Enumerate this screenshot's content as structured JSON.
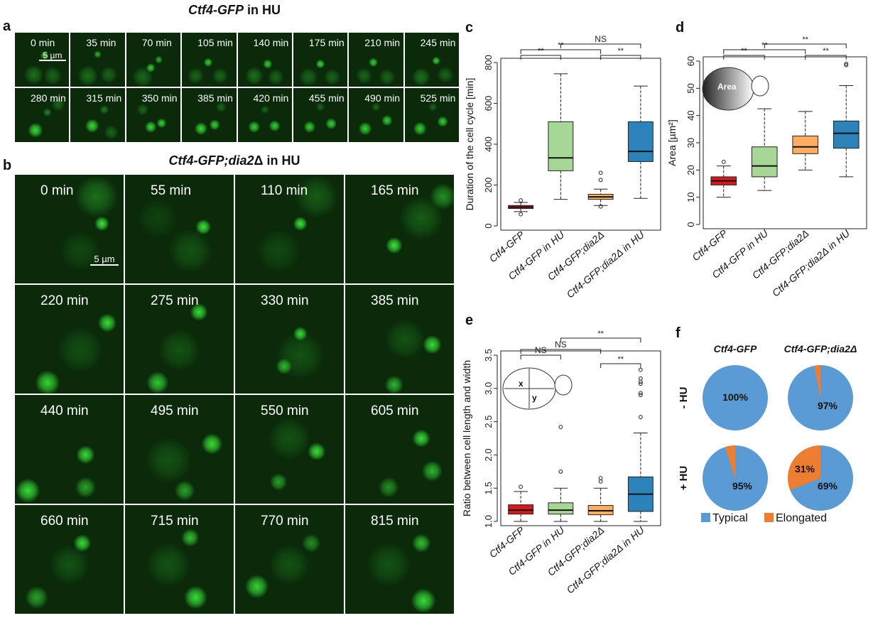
{
  "panels": {
    "a": {
      "letter": "a",
      "title_italic": "Ctf4-GFP",
      "title_rest": " in HU",
      "scalebar": "5 µm",
      "frames": [
        "0 min",
        "35 min",
        "70 min",
        "105 min",
        "140 min",
        "175 min",
        "210 min",
        "245 min",
        "280 min",
        "315 min",
        "350 min",
        "385 min",
        "420 min",
        "455 min",
        "490 min",
        "525 min"
      ]
    },
    "b": {
      "letter": "b",
      "title_italic": "Ctf4-GFP;dia2",
      "title_rest": "Δ in HU",
      "scalebar": "5 µm",
      "frames": [
        "0 min",
        "55 min",
        "110 min",
        "165 min",
        "220 min",
        "275 min",
        "330 min",
        "385 min",
        "440 min",
        "495 min",
        "550 min",
        "605 min",
        "660 min",
        "715 min",
        "770 min",
        "815 min"
      ]
    },
    "c": {
      "letter": "c"
    },
    "d": {
      "letter": "d",
      "inset_label": "Area"
    },
    "e": {
      "letter": "e",
      "inset_x": "x",
      "inset_y": "y"
    },
    "f": {
      "letter": "f",
      "col_labels": [
        "Ctf4-GFP",
        "Ctf4-GFP;dia2Δ"
      ],
      "row_labels": [
        "- HU",
        "+ HU"
      ]
    }
  },
  "colors": {
    "red": "#d7191c",
    "green": "#a6d796",
    "orange": "#fdae61",
    "blue": "#2b83ba",
    "pie_typical": "#5b9bd5",
    "pie_elongated": "#ed7d31",
    "gfp": "#35e635"
  },
  "chart_data": [
    {
      "id": "c",
      "type": "box",
      "title": "",
      "ylabel": "Duration of the cell cycle [min]",
      "ylim": [
        0,
        800
      ],
      "yticks": [
        "0",
        "200",
        "400",
        "600",
        "800"
      ],
      "categories": [
        "Ctf4-GFP",
        "Ctf4-GFP in HU",
        "Ctf4-GFP;dia2Δ",
        "Ctf4-GFP;dia2Δ in HU"
      ],
      "boxes": [
        {
          "min": 70,
          "q1": 85,
          "median": 92,
          "q3": 100,
          "max": 115,
          "outliers": [
            57,
            125
          ]
        },
        {
          "min": 130,
          "q1": 270,
          "median": 333,
          "q3": 510,
          "max": 745,
          "outliers": []
        },
        {
          "min": 100,
          "q1": 130,
          "median": 142,
          "q3": 155,
          "max": 180,
          "outliers": [
            95,
            225,
            260
          ]
        },
        {
          "min": 135,
          "q1": 315,
          "median": 365,
          "q3": 510,
          "max": 685,
          "outliers": []
        }
      ],
      "significance": [
        {
          "from": 0,
          "to": 1,
          "label": "**"
        },
        {
          "from": 0,
          "to": 2,
          "label": "**"
        },
        {
          "from": 1,
          "to": 3,
          "label": "NS"
        },
        {
          "from": 2,
          "to": 3,
          "label": "**"
        }
      ]
    },
    {
      "id": "d",
      "type": "box",
      "title": "",
      "ylabel": "Area [µm²]",
      "ylim": [
        0,
        60
      ],
      "yticks": [
        "0",
        "10",
        "20",
        "30",
        "40",
        "50",
        "60"
      ],
      "categories": [
        "Ctf4-GFP",
        "Ctf4-GFP in HU",
        "Ctf4-GFP;dia2Δ",
        "Ctf4-GFP;dia2Δ in HU"
      ],
      "boxes": [
        {
          "min": 10,
          "q1": 14.5,
          "median": 16,
          "q3": 17.5,
          "max": 21.5,
          "outliers": [
            23
          ]
        },
        {
          "min": 12.5,
          "q1": 17.5,
          "median": 21.5,
          "q3": 28.5,
          "max": 42.5,
          "outliers": []
        },
        {
          "min": 20,
          "q1": 26,
          "median": 28.5,
          "q3": 32.5,
          "max": 41.5,
          "outliers": []
        },
        {
          "min": 17.5,
          "q1": 28,
          "median": 33.5,
          "q3": 38,
          "max": 51,
          "outliers": [
            58.5,
            59
          ]
        }
      ],
      "significance": [
        {
          "from": 0,
          "to": 1,
          "label": "**"
        },
        {
          "from": 0,
          "to": 2,
          "label": "**"
        },
        {
          "from": 1,
          "to": 3,
          "label": "**"
        },
        {
          "from": 2,
          "to": 3,
          "label": "**"
        }
      ]
    },
    {
      "id": "e",
      "type": "box",
      "title": "",
      "ylabel": "Ratio between cell length and width",
      "ylim": [
        1.0,
        3.5
      ],
      "yticks": [
        "1.0",
        "1.5",
        "2.0",
        "2.5",
        "3.0",
        "3.5"
      ],
      "categories": [
        "Ctf4-GFP",
        "Ctf4-GFP in HU",
        "Ctf4-GFP;dia2Δ",
        "Ctf4-GFP;dia2Δ in HU"
      ],
      "boxes": [
        {
          "min": 1.0,
          "q1": 1.11,
          "median": 1.17,
          "q3": 1.25,
          "max": 1.45,
          "outliers": [
            1.52
          ]
        },
        {
          "min": 1.0,
          "q1": 1.11,
          "median": 1.17,
          "q3": 1.28,
          "max": 1.5,
          "outliers": [
            1.75,
            2.42
          ]
        },
        {
          "min": 1.0,
          "q1": 1.1,
          "median": 1.16,
          "q3": 1.24,
          "max": 1.5,
          "outliers": [
            1.6,
            1.65
          ]
        },
        {
          "min": 1.0,
          "q1": 1.15,
          "median": 1.41,
          "q3": 1.67,
          "max": 2.33,
          "outliers": [
            2.57,
            2.9,
            2.93,
            3.07,
            3.1,
            3.15,
            3.28
          ]
        }
      ],
      "significance": [
        {
          "from": 0,
          "to": 1,
          "label": "NS"
        },
        {
          "from": 0,
          "to": 2,
          "label": "NS"
        },
        {
          "from": 1,
          "to": 3,
          "label": "**"
        },
        {
          "from": 2,
          "to": 3,
          "label": "**"
        }
      ]
    },
    {
      "id": "f",
      "type": "pie",
      "title": "",
      "legend": [
        "Typical",
        "Elongated"
      ],
      "legend_position": "bottom",
      "pies": [
        {
          "row": "- HU",
          "col": "Ctf4-GFP",
          "values": [
            100,
            0
          ],
          "label": "100%",
          "label_elongated": ""
        },
        {
          "row": "- HU",
          "col": "Ctf4-GFP;dia2Δ",
          "values": [
            97,
            3
          ],
          "label": "97%",
          "label_elongated": ""
        },
        {
          "row": "+ HU",
          "col": "Ctf4-GFP",
          "values": [
            95,
            5
          ],
          "label": "95%",
          "label_elongated": ""
        },
        {
          "row": "+ HU",
          "col": "Ctf4-GFP;dia2Δ",
          "values": [
            69,
            31
          ],
          "label": "69%",
          "label_elongated": "31%"
        }
      ]
    }
  ]
}
